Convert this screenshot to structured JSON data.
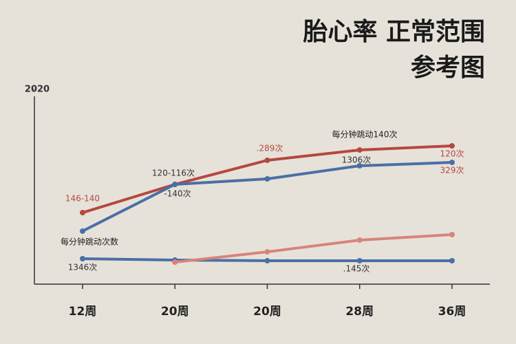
{
  "chart_data": {
    "type": "line",
    "title": "胎心率 正常范围",
    "subtitle": "参考图",
    "categories": [
      "12周",
      "20周",
      "20周",
      "28周",
      "36周"
    ],
    "ylim": [
      0,
      2020
    ],
    "yticks": [
      2020
    ],
    "series": [
      {
        "name": "每分钟跳动140次",
        "color": "#b5483f",
        "values": [
          742,
          1035,
          1285,
          1392,
          1435
        ]
      },
      {
        "name": "每分钟跳动",
        "color": "#4a6fa5",
        "values": [
          550,
          1035,
          1092,
          1228,
          1263
        ]
      },
      {
        "name": "每分钟跳动次数",
        "color": "#4a6fa5",
        "values": [
          264,
          250,
          243,
          243,
          243
        ]
      },
      {
        "name": "次数",
        "color": "#d9837a",
        "values": [
          null,
          228,
          335,
          457,
          514
        ]
      }
    ],
    "annotations": [
      "146-140",
      "120-116次",
      "-140次",
      ".289次",
      "1306次",
      "120次",
      "329次",
      "1346次",
      ".145次"
    ]
  }
}
